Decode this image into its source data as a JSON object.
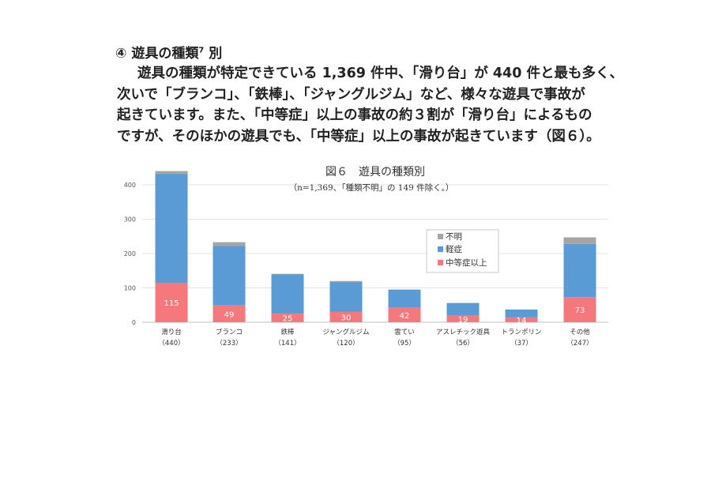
{
  "document": {
    "heading_marker": "④",
    "heading_text": "遊具の種類",
    "heading_note": "7",
    "heading_tail": "別",
    "paragraph_lines": [
      "遊具の種類が特定できている 1,369 件中、「滑り台」が 440 件と最も多く、",
      "次いで「ブランコ」、「鉄棒」、「ジャングルジム」など、様々な遊具で事故が",
      "起きています。また、「中等症」以上の事故の約３割が「滑り台」によるもの",
      "ですが、そのほかの遊具でも、「中等症」以上の事故が起きています（図６）。"
    ]
  },
  "chart_data": {
    "type": "bar",
    "stacked": true,
    "title": "図６　遊具の種類別",
    "subtitle": "（n=1,369、「種類不明」の 149 件除く。）",
    "categories": [
      "滑り台",
      "ブランコ",
      "鉄棒",
      "ジャングルジム",
      "雲てい",
      "アスレチック遊具",
      "トランポリン",
      "その他"
    ],
    "category_totals": [
      "（440）",
      "（233）",
      "（141）",
      "（120）",
      "（95）",
      "（56）",
      "（37）",
      "（247）"
    ],
    "series": [
      {
        "name": "中等症以上",
        "color": "#f4787c",
        "values": [
          115,
          49,
          25,
          30,
          42,
          19,
          14,
          73
        ]
      },
      {
        "name": "軽症",
        "color": "#5b9bd5",
        "values": [
          317,
          173,
          114,
          87,
          53,
          37,
          23,
          155
        ]
      },
      {
        "name": "不明",
        "color": "#a5a5a5",
        "values": [
          8,
          11,
          2,
          3,
          0,
          0,
          0,
          19
        ]
      }
    ],
    "data_labels": [
      "115",
      "49",
      "25",
      "30",
      "42",
      "19",
      "14",
      "73"
    ],
    "y_ticks": [
      "0",
      "100",
      "200",
      "300",
      "400"
    ],
    "ylim": [
      0,
      440
    ],
    "grid": true,
    "legend": [
      "不明",
      "軽症",
      "中等症以上"
    ]
  }
}
